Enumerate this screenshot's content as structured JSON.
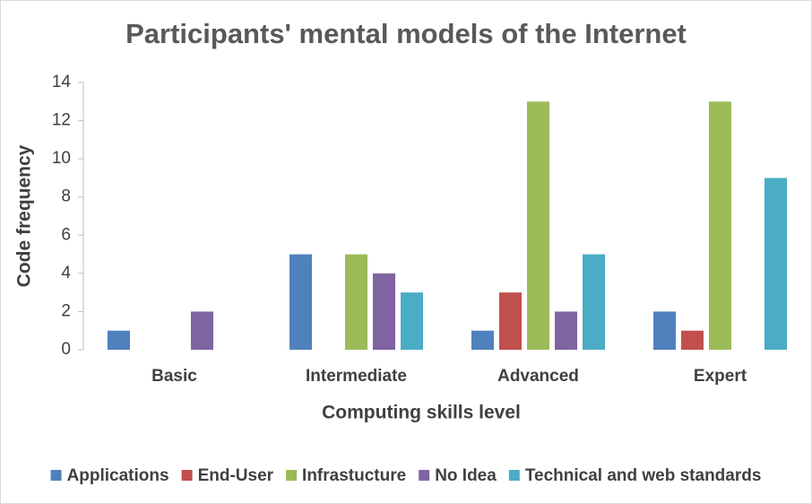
{
  "chart_data": {
    "type": "bar",
    "title": "Participants' mental models of the Internet",
    "x_label": "Computing skills level",
    "y_label": "Code frequency",
    "categories": [
      "Basic",
      "Intermediate",
      "Advanced",
      "Expert"
    ],
    "series": [
      {
        "name": "Applications",
        "color": "#4f81bd",
        "values": [
          1,
          5,
          1,
          2
        ]
      },
      {
        "name": "End-User",
        "color": "#c0504d",
        "values": [
          0,
          0,
          3,
          1
        ]
      },
      {
        "name": "Infrastucture",
        "color": "#9bbb59",
        "values": [
          0,
          5,
          13,
          13
        ]
      },
      {
        "name": "No Idea",
        "color": "#8064a2",
        "values": [
          2,
          4,
          2,
          0
        ]
      },
      {
        "name": "Technical and web standards",
        "color": "#4bacc6",
        "values": [
          0,
          3,
          5,
          9
        ]
      }
    ],
    "ylim": [
      0,
      14
    ],
    "yticks": [
      0,
      2,
      4,
      6,
      8,
      10,
      12,
      14
    ],
    "grid": false,
    "legend": "bottom"
  }
}
